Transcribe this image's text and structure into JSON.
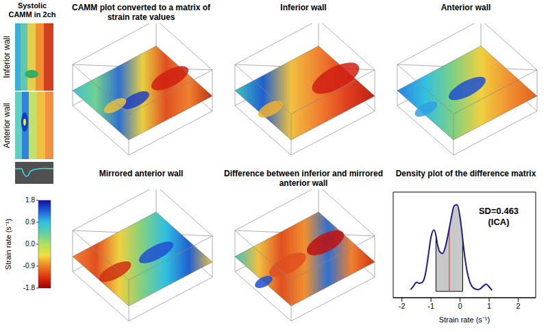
{
  "figure": {
    "camm": {
      "title": "Systolic CAMM in 2ch",
      "labels": [
        "Inferior wall",
        "Anterior wall"
      ],
      "colorbar": {
        "label": "Strain rate (s⁻¹)",
        "range": [
          -1.8,
          1.8
        ],
        "ticks": [
          1.8,
          0.9,
          {
            "value": 0,
            "label": "0.0"
          },
          -0.9,
          -1.8
        ]
      }
    },
    "surfaces": [
      {
        "title": "CAMM plot converted to a matrix of strain rate values"
      },
      {
        "title": "Inferior wall"
      },
      {
        "title": "Anterior wall"
      },
      {
        "title": "Mirrored anterior wall"
      },
      {
        "title": "Difference between inferior and mirrored anterior wall"
      }
    ]
  },
  "chart_data": {
    "type": "line",
    "title": "Density plot of the difference matrix",
    "x_label": "Strain rate (s⁻¹)",
    "x": [
      -1.7,
      -1.6,
      -1.5,
      -1.4,
      -1.3,
      -1.2,
      -1.1,
      -1.0,
      -0.9,
      -0.83,
      -0.8,
      -0.7,
      -0.6,
      -0.5,
      -0.4,
      -0.37,
      -0.3,
      -0.2,
      -0.1,
      0,
      0.09,
      0.1,
      0.2,
      0.3,
      0.4,
      0.5,
      0.6,
      0.7,
      0.8,
      0.9,
      1.0,
      1.1
    ],
    "values": [
      0.02,
      0.06,
      0.1,
      0.09,
      0.1,
      0.18,
      0.38,
      0.6,
      0.68,
      0.62,
      0.56,
      0.44,
      0.42,
      0.5,
      0.65,
      0.7,
      0.82,
      0.95,
      0.96,
      0.82,
      0.58,
      0.55,
      0.3,
      0.14,
      0.06,
      0.03,
      0.02,
      0.03,
      0.06,
      0.08,
      0.05,
      0.01
    ],
    "color": "#1a1a8c",
    "shaded_range": [
      -0.83,
      0.09
    ],
    "mean": -0.37,
    "annotations": [
      "SD=0.463",
      "(ICA)"
    ],
    "xlim": [
      -2.3,
      2.6
    ],
    "xticks": [
      -2,
      -1,
      0,
      1,
      2
    ],
    "ylim": [
      -0.07,
      1.1
    ],
    "tick_labels": "x",
    "grid": false
  }
}
